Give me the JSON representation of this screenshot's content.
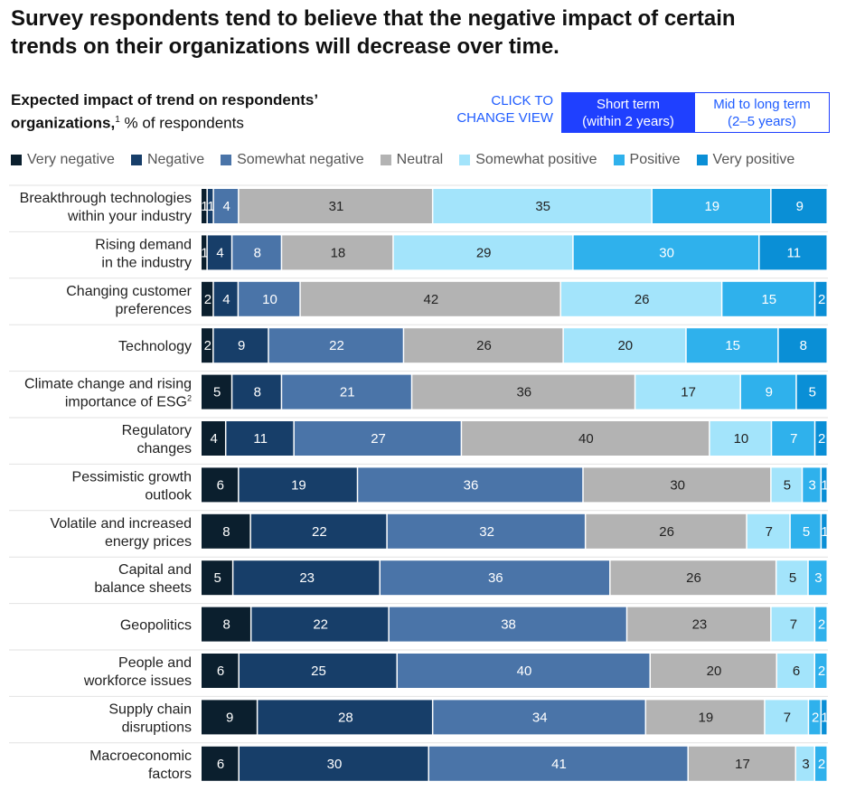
{
  "headline_lines": [
    "Survey respondents tend to believe that the negative impact of certain",
    "trends on their organizations will decrease over time."
  ],
  "subtitle": {
    "bold_line1": "Expected impact of trend on respondents’",
    "bold_line2": "organizations,",
    "footnote": "1",
    "rest": " % of respondents"
  },
  "toggle": {
    "click_label_line1": "CLICK TO",
    "click_label_line2": "CHANGE VIEW",
    "options": [
      {
        "line1": "Short term",
        "line2": "(within 2 years)",
        "active": true
      },
      {
        "line1": "Mid to long term",
        "line2": "(2–5 years)",
        "active": false
      }
    ]
  },
  "colors": {
    "very_negative": "#0b1f2e",
    "negative": "#173e69",
    "somewhat_negative": "#4a74a8",
    "neutral": "#b3b3b3",
    "somewhat_positive": "#a3e4fb",
    "positive": "#2fb1ec",
    "very_positive": "#0a8fd6",
    "accent": "#1f40ff"
  },
  "chart_data": {
    "type": "bar",
    "orientation": "horizontal-stacked",
    "unit": "% of respondents",
    "legend_position": "top",
    "series": [
      {
        "name": "Very negative",
        "color": "#0b1f2e"
      },
      {
        "name": "Negative",
        "color": "#173e69"
      },
      {
        "name": "Somewhat negative",
        "color": "#4a74a8"
      },
      {
        "name": "Neutral",
        "color": "#b3b3b3"
      },
      {
        "name": "Somewhat positive",
        "color": "#a3e4fb"
      },
      {
        "name": "Positive",
        "color": "#2fb1ec"
      },
      {
        "name": "Very positive",
        "color": "#0a8fd6"
      }
    ],
    "categories": [
      {
        "lines": [
          "Breakthrough technologies",
          "within your industry"
        ],
        "footnote": "",
        "values": [
          1,
          1,
          4,
          31,
          35,
          19,
          9
        ]
      },
      {
        "lines": [
          "Rising demand",
          "in the industry"
        ],
        "footnote": "",
        "values": [
          1,
          4,
          8,
          18,
          29,
          30,
          11
        ]
      },
      {
        "lines": [
          "Changing customer",
          "preferences"
        ],
        "footnote": "",
        "values": [
          2,
          4,
          10,
          42,
          26,
          15,
          2
        ]
      },
      {
        "lines": [
          "Technology"
        ],
        "footnote": "",
        "values": [
          2,
          9,
          22,
          26,
          20,
          15,
          8
        ]
      },
      {
        "lines": [
          "Climate change and rising",
          "importance of ESG"
        ],
        "footnote": "2",
        "values": [
          5,
          8,
          21,
          36,
          17,
          9,
          5
        ]
      },
      {
        "lines": [
          "Regulatory",
          "changes"
        ],
        "footnote": "",
        "values": [
          4,
          11,
          27,
          40,
          10,
          7,
          2
        ]
      },
      {
        "lines": [
          "Pessimistic growth",
          "outlook"
        ],
        "footnote": "",
        "values": [
          6,
          19,
          36,
          30,
          5,
          3,
          1
        ]
      },
      {
        "lines": [
          "Volatile and increased",
          "energy prices"
        ],
        "footnote": "",
        "values": [
          8,
          22,
          32,
          26,
          7,
          5,
          1
        ]
      },
      {
        "lines": [
          "Capital and",
          "balance sheets"
        ],
        "footnote": "",
        "values": [
          5,
          23,
          36,
          26,
          5,
          3,
          0
        ]
      },
      {
        "lines": [
          "Geopolitics"
        ],
        "footnote": "",
        "values": [
          8,
          22,
          38,
          23,
          7,
          2,
          0
        ]
      },
      {
        "lines": [
          "People and",
          "workforce issues"
        ],
        "footnote": "",
        "values": [
          6,
          25,
          40,
          20,
          6,
          2,
          0
        ]
      },
      {
        "lines": [
          "Supply chain",
          "disruptions"
        ],
        "footnote": "",
        "values": [
          9,
          28,
          34,
          19,
          7,
          2,
          1
        ]
      },
      {
        "lines": [
          "Macroeconomic",
          "factors"
        ],
        "footnote": "",
        "values": [
          6,
          30,
          41,
          17,
          3,
          2,
          0
        ]
      }
    ]
  }
}
